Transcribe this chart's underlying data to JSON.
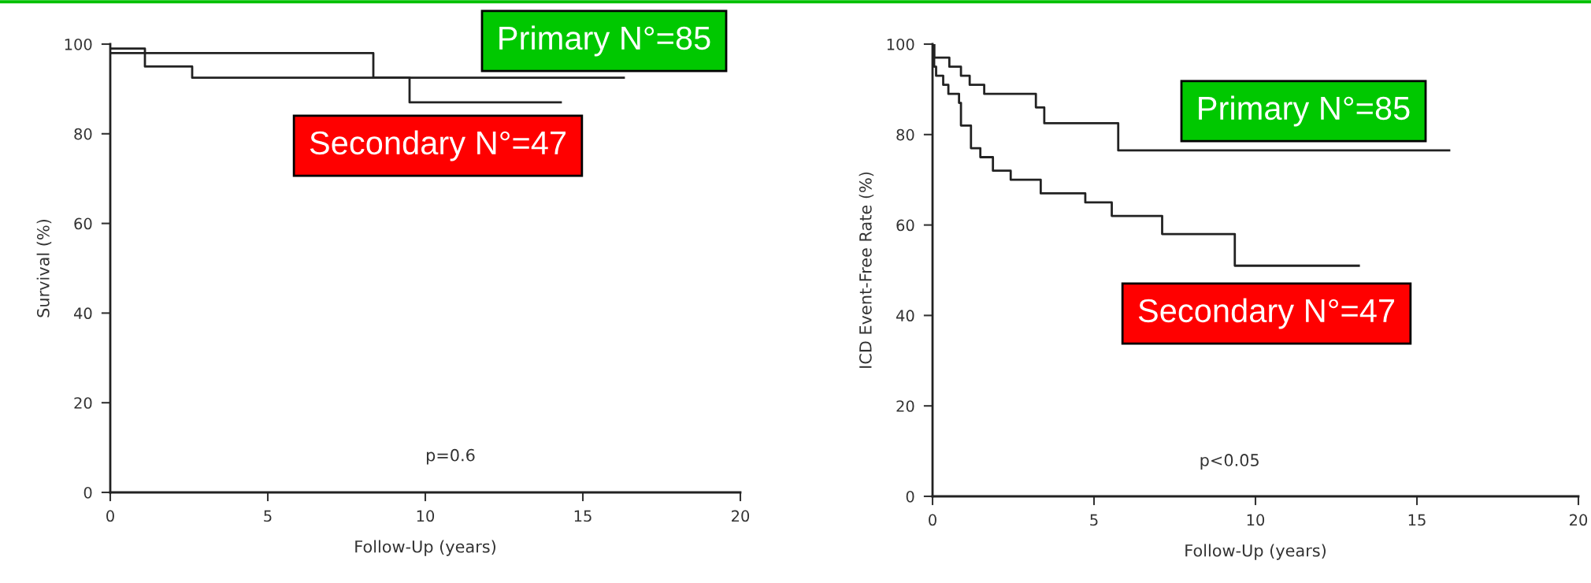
{
  "chart_data": [
    {
      "type": "step",
      "xlabel": "Follow-Up (years)",
      "ylabel": "Survival (%)",
      "xlim": [
        0,
        20
      ],
      "xticks": [
        0,
        5,
        10,
        15,
        20
      ],
      "ylim": [
        0,
        100
      ],
      "yticks": [
        0,
        20,
        40,
        60,
        80,
        100
      ],
      "series": [
        {
          "color": "#222222",
          "x": [
            0,
            8.35,
            16.3
          ],
          "values": [
            98,
            92.5,
            92.5
          ]
        },
        {
          "color": "#222222",
          "x": [
            0,
            1.1,
            2.6,
            9.5,
            14.3
          ],
          "values": [
            99,
            95,
            92.5,
            87,
            87
          ]
        }
      ],
      "annotations": [
        "Primary N°=85",
        "Secondary N°=47",
        "p=0.6"
      ]
    },
    {
      "type": "step",
      "xlabel": "Follow-Up (years)",
      "ylabel": "ICD Event-Free Rate (%)",
      "xlim": [
        0,
        20
      ],
      "xticks": [
        0,
        5,
        10,
        15,
        20
      ],
      "ylim": [
        0,
        100
      ],
      "yticks": [
        0,
        20,
        40,
        60,
        80,
        100
      ],
      "series": [
        {
          "color": "#222222",
          "x": [
            0,
            0.05,
            0.52,
            0.88,
            1.15,
            1.6,
            3.2,
            3.46,
            5.75,
            16.0
          ],
          "values": [
            100,
            97,
            95,
            93,
            91,
            89,
            86,
            82.5,
            76.5,
            76.5
          ]
        },
        {
          "color": "#222222",
          "x": [
            0,
            0.05,
            0.11,
            0.33,
            0.49,
            0.82,
            0.88,
            1.19,
            1.48,
            1.87,
            2.42,
            3.35,
            4.73,
            5.55,
            7.11,
            9.36,
            13.2
          ],
          "values": [
            100,
            95,
            93,
            91,
            89,
            87,
            82,
            77,
            75,
            72,
            70,
            67,
            65,
            62,
            58,
            51,
            51
          ]
        }
      ],
      "annotations": [
        "Primary N°=85",
        "Secondary N°=47",
        "p<0.05"
      ]
    }
  ]
}
